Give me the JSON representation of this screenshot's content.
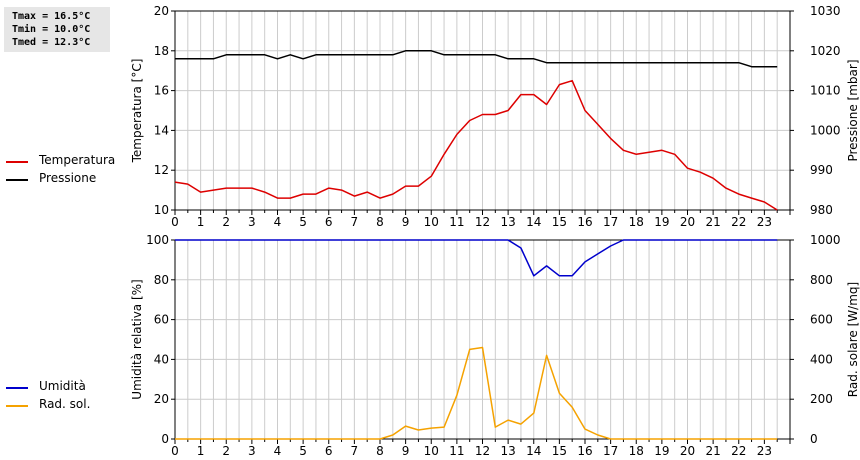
{
  "stats": {
    "tmax": "Tmax = 16.5°C",
    "tmin": "Tmin = 10.0°C",
    "tmed": "Tmed = 12.3°C"
  },
  "colors": {
    "temperature": "#dd0000",
    "pressure": "#000000",
    "humidity": "#0000cc",
    "solar": "#f5a200",
    "grid": "#cccccc",
    "stats_bg": "#e6e6e6"
  },
  "chart_data": [
    {
      "type": "line",
      "x_ticks": [
        "0",
        "1",
        "2",
        "3",
        "4",
        "5",
        "6",
        "7",
        "8",
        "9",
        "10",
        "11",
        "12",
        "13",
        "14",
        "15",
        "16",
        "17",
        "18",
        "19",
        "20",
        "21",
        "22",
        "23"
      ],
      "xlim": [
        0,
        24
      ],
      "grid": true,
      "legend_position": "left",
      "y_left": {
        "label": "Temperatura [°C]",
        "ylim": [
          10,
          20
        ],
        "ticks": [
          "10",
          "12",
          "14",
          "16",
          "18",
          "20"
        ]
      },
      "y_right": {
        "label": "Pressione [mbar]",
        "ylim": [
          980,
          1030
        ],
        "ticks": [
          "980",
          "990",
          "1000",
          "1010",
          "1020",
          "1030"
        ]
      },
      "series": [
        {
          "name": "Temperatura",
          "axis": "left",
          "x": [
            0,
            0.5,
            1,
            1.5,
            2,
            2.5,
            3,
            3.5,
            4,
            4.5,
            5,
            5.5,
            6,
            6.5,
            7,
            7.5,
            8,
            8.5,
            9,
            9.5,
            10,
            10.5,
            11,
            11.5,
            12,
            12.5,
            13,
            13.5,
            14,
            14.5,
            15,
            15.5,
            16,
            16.5,
            17,
            17.5,
            18,
            18.5,
            19,
            19.5,
            20,
            20.5,
            21,
            21.5,
            22,
            22.5,
            23,
            23.5
          ],
          "values": [
            11.4,
            11.3,
            10.9,
            11.0,
            11.1,
            11.1,
            11.1,
            10.9,
            10.6,
            10.6,
            10.8,
            10.8,
            11.1,
            11.0,
            10.7,
            10.9,
            10.6,
            10.8,
            11.2,
            11.2,
            11.7,
            12.8,
            13.8,
            14.5,
            14.8,
            14.8,
            15.0,
            15.8,
            15.8,
            15.3,
            16.3,
            16.5,
            15.0,
            14.3,
            13.6,
            13.0,
            12.8,
            12.9,
            13.0,
            12.8,
            12.1,
            11.9,
            11.6,
            11.1,
            10.8,
            10.6,
            10.4,
            10.0
          ]
        },
        {
          "name": "Pressione",
          "axis": "right",
          "x": [
            0,
            0.5,
            1,
            1.5,
            2,
            2.5,
            3,
            3.5,
            4,
            4.5,
            5,
            5.5,
            6,
            6.5,
            7,
            7.5,
            8,
            8.5,
            9,
            9.5,
            10,
            10.5,
            11,
            11.5,
            12,
            12.5,
            13,
            13.5,
            14,
            14.5,
            15,
            15.5,
            16,
            16.5,
            17,
            17.5,
            18,
            18.5,
            19,
            19.5,
            20,
            20.5,
            21,
            21.5,
            22,
            22.5,
            23,
            23.5
          ],
          "values": [
            1018,
            1018,
            1018,
            1018,
            1019,
            1019,
            1019,
            1019,
            1018,
            1019,
            1018,
            1019,
            1019,
            1019,
            1019,
            1019,
            1019,
            1019,
            1020,
            1020,
            1020,
            1019,
            1019,
            1019,
            1019,
            1019,
            1018,
            1018,
            1018,
            1017,
            1017,
            1017,
            1017,
            1017,
            1017,
            1017,
            1017,
            1017,
            1017,
            1017,
            1017,
            1017,
            1017,
            1017,
            1017,
            1016,
            1016,
            1016
          ]
        }
      ]
    },
    {
      "type": "line",
      "x_ticks": [
        "0",
        "1",
        "2",
        "3",
        "4",
        "5",
        "6",
        "7",
        "8",
        "9",
        "10",
        "11",
        "12",
        "13",
        "14",
        "15",
        "16",
        "17",
        "18",
        "19",
        "20",
        "21",
        "22",
        "23"
      ],
      "xlim": [
        0,
        24
      ],
      "grid": true,
      "legend_position": "left",
      "y_left": {
        "label": "Umidità relativa [%]",
        "ylim": [
          0,
          100
        ],
        "ticks": [
          "0",
          "20",
          "40",
          "60",
          "80",
          "100"
        ]
      },
      "y_right": {
        "label": "Rad. solare [W/mq]",
        "ylim": [
          0,
          1000
        ],
        "ticks": [
          "0",
          "200",
          "400",
          "600",
          "800",
          "1000"
        ]
      },
      "series": [
        {
          "name": "Umidità",
          "axis": "left",
          "x": [
            0,
            13,
            13.5,
            14,
            14.5,
            15,
            15.5,
            16,
            16.5,
            17,
            17.5,
            18,
            23.5
          ],
          "values": [
            100,
            100,
            96,
            82,
            87,
            82,
            82,
            89,
            93,
            97,
            100,
            100,
            100
          ]
        },
        {
          "name": "Rad. sol.",
          "axis": "right",
          "x": [
            0,
            8,
            8.5,
            9,
            9.5,
            10,
            10.5,
            11,
            11.5,
            12,
            12.5,
            13,
            13.5,
            14,
            14.5,
            15,
            15.5,
            16,
            16.5,
            17,
            17.5,
            23.5
          ],
          "values": [
            0,
            0,
            20,
            65,
            45,
            55,
            60,
            220,
            450,
            460,
            60,
            95,
            75,
            130,
            420,
            230,
            160,
            50,
            20,
            0,
            0,
            0
          ]
        }
      ]
    }
  ]
}
